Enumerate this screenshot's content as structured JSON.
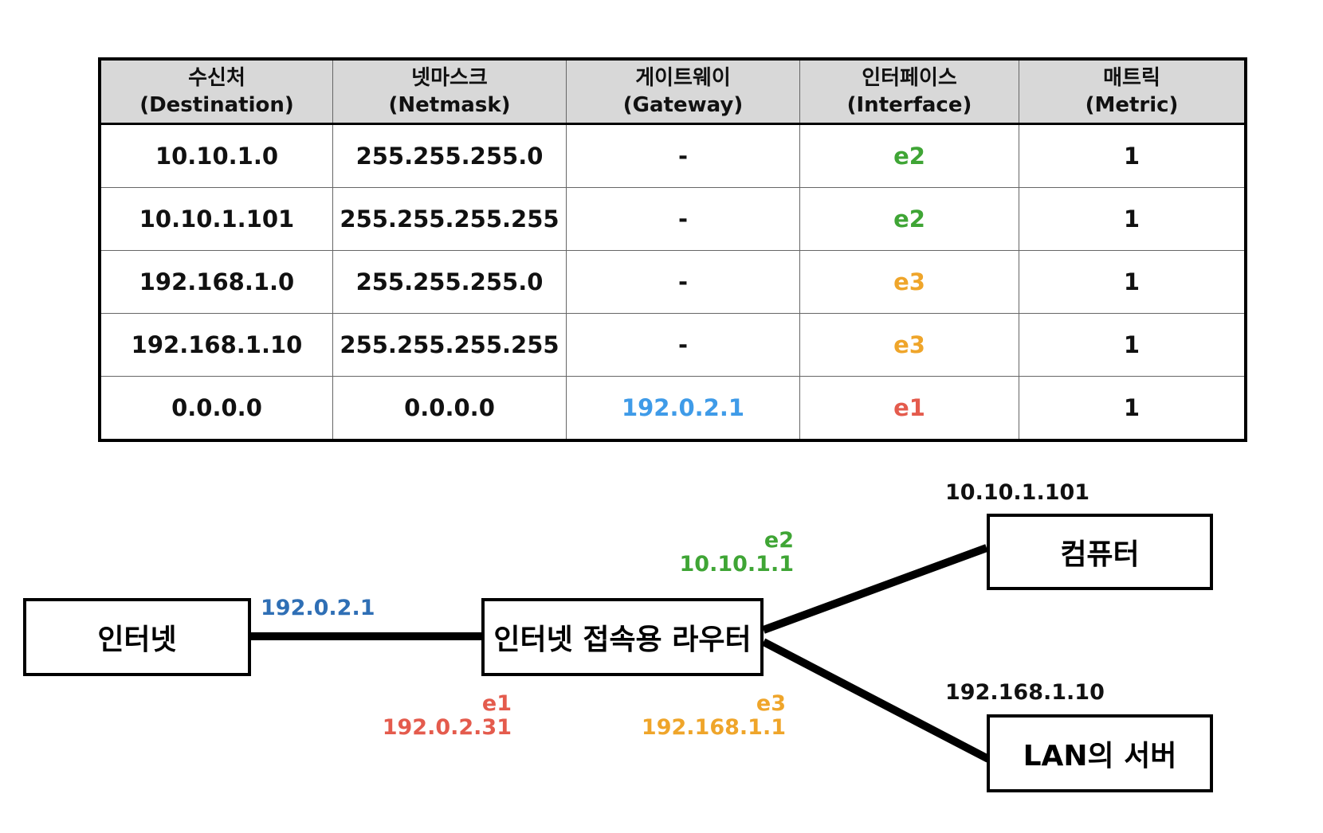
{
  "colors": {
    "e1": "#e45b4d",
    "e2": "#3fa535",
    "e3": "#efa52a",
    "gateway": "#3f9be8",
    "internet_ip": "#2f6fb5",
    "text": "#111111"
  },
  "routing_table": {
    "headers": [
      {
        "ko": "수신처",
        "en": "(Destination)"
      },
      {
        "ko": "넷마스크",
        "en": "(Netmask)"
      },
      {
        "ko": "게이트웨이",
        "en": "(Gateway)"
      },
      {
        "ko": "인터페이스",
        "en": "(Interface)"
      },
      {
        "ko": "매트릭",
        "en": "(Metric)"
      }
    ],
    "rows": [
      {
        "destination": "10.10.1.0",
        "netmask": "255.255.255.0",
        "gateway": "-",
        "interface": "e2",
        "metric": "1"
      },
      {
        "destination": "10.10.1.101",
        "netmask": "255.255.255.255",
        "gateway": "-",
        "interface": "e2",
        "metric": "1"
      },
      {
        "destination": "192.168.1.0",
        "netmask": "255.255.255.0",
        "gateway": "-",
        "interface": "e3",
        "metric": "1"
      },
      {
        "destination": "192.168.1.10",
        "netmask": "255.255.255.255",
        "gateway": "-",
        "interface": "e3",
        "metric": "1"
      },
      {
        "destination": "0.0.0.0",
        "netmask": "0.0.0.0",
        "gateway": "192.0.2.1",
        "interface": "e1",
        "metric": "1"
      }
    ]
  },
  "diagram": {
    "nodes": {
      "internet": "인터넷",
      "router": "인터넷 접속용 라우터",
      "computer": "컴퓨터",
      "lan_server": "LAN의 서버"
    },
    "internet_ip": "192.0.2.1",
    "e1": {
      "name": "e1",
      "ip": "192.0.2.31"
    },
    "e2": {
      "name": "e2",
      "ip": "10.10.1.1"
    },
    "e3": {
      "name": "e3",
      "ip": "192.168.1.1"
    },
    "computer_ip": "10.10.1.101",
    "lan_server_ip": "192.168.1.10"
  }
}
